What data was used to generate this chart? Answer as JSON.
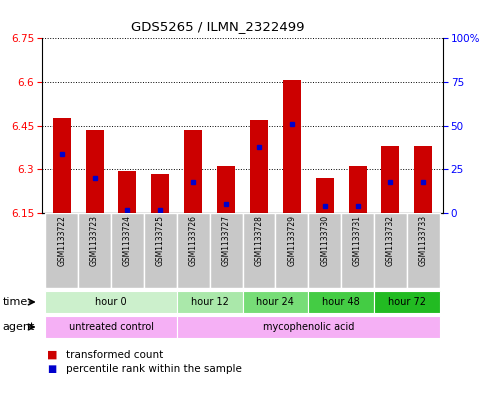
{
  "title": "GDS5265 / ILMN_2322499",
  "samples": [
    "GSM1133722",
    "GSM1133723",
    "GSM1133724",
    "GSM1133725",
    "GSM1133726",
    "GSM1133727",
    "GSM1133728",
    "GSM1133729",
    "GSM1133730",
    "GSM1133731",
    "GSM1133732",
    "GSM1133733"
  ],
  "red_values": [
    6.475,
    6.435,
    6.295,
    6.285,
    6.435,
    6.31,
    6.47,
    6.605,
    6.27,
    6.31,
    6.38,
    6.38
  ],
  "blue_percentiles": [
    34,
    20,
    2,
    2,
    18,
    5,
    38,
    51,
    4,
    4,
    18,
    18
  ],
  "y_min": 6.15,
  "y_max": 6.75,
  "y_ticks_left": [
    6.15,
    6.3,
    6.45,
    6.6,
    6.75
  ],
  "y_ticks_right": [
    0,
    25,
    50,
    75,
    100
  ],
  "time_colors": [
    "#ccf0cc",
    "#aae8aa",
    "#77dd77",
    "#44cc44",
    "#22bb22"
  ],
  "agent_color_untreated": "#f5b0f5",
  "agent_color_treated": "#f5b0f5",
  "bar_color": "#cc0000",
  "blue_color": "#0000cc",
  "baseline": 6.15,
  "bg_color": "#ffffff",
  "sample_box_color": "#c8c8c8",
  "legend_tc": "transformed count",
  "legend_pr": "percentile rank within the sample"
}
